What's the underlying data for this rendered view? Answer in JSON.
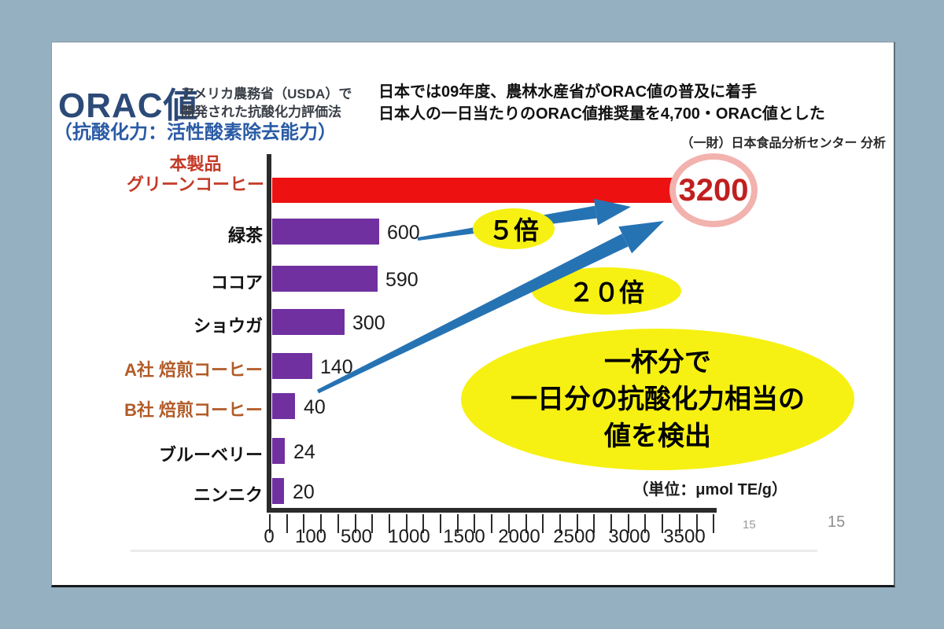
{
  "slide": {
    "title": "ORAC値",
    "title_note_line1": "アメリカ農務省（USDA）で",
    "title_note_line2": "開発された抗酸化力評価法",
    "subtitle": "（抗酸化力：活性酸素除去能力）",
    "headline_line1": "日本では09年度、農林水産省がORAC値の普及に着手",
    "headline_line2": "日本人の一日当たりのORAC値推奨量を4,700・ORAC値とした",
    "credit": "（一財）日本食品分析センター 分析",
    "page_number_chart": "15",
    "page_number_slide": "15"
  },
  "chart_data": {
    "type": "bar",
    "orientation": "horizontal",
    "title": "ORAC値",
    "unit": "（単位：μmol TE/g）",
    "grid": false,
    "xlim": [
      0,
      3750
    ],
    "x_tick_labels": [
      "0",
      "100",
      "500",
      "1000",
      "1500",
      "2000",
      "2500",
      "3000",
      "3500"
    ],
    "rows": [
      {
        "label_line1": "本製品",
        "label_line2": "グリーンコーヒー",
        "value": 3200,
        "value_label": "3200",
        "color": "#ee1111",
        "highlighted": true
      },
      {
        "label": "緑茶",
        "value": 600,
        "value_label": "600",
        "color": "#7030a0"
      },
      {
        "label": "ココア",
        "value": 590,
        "value_label": "590",
        "color": "#7030a0"
      },
      {
        "label": "ショウガ",
        "value": 300,
        "value_label": "300",
        "color": "#7030a0"
      },
      {
        "label": "A社 焙煎コーヒー",
        "value": 140,
        "value_label": "140",
        "color": "#b25b28"
      },
      {
        "label": "B社 焙煎コーヒー",
        "value": 40,
        "value_label": "40",
        "color": "#b25b28"
      },
      {
        "label": "ブルーベリー",
        "value": 24,
        "value_label": "24",
        "color": "#7030a0"
      },
      {
        "label": "ニンニク",
        "value": 20,
        "value_label": "20",
        "color": "#7030a0"
      }
    ]
  },
  "annotations": {
    "ratio_5x": "５倍",
    "ratio_20x": "２０倍",
    "highlight_value": "3200",
    "callout_line1": "一杯分で",
    "callout_line2": "一日分の抗酸化力相当の",
    "callout_line3": "値を検出"
  },
  "colors": {
    "background": "#95b0c1",
    "highlight_bar": "#ee1111",
    "bar": "#7030a0",
    "arrow": "#2673b4",
    "bubble": "#f6f112",
    "circle_ring": "#f2b2ae",
    "title_navy": "#2c4a77",
    "subtitle_blue": "#2a5ba5",
    "label_red": "#c43a28",
    "label_brown": "#b25b28"
  }
}
